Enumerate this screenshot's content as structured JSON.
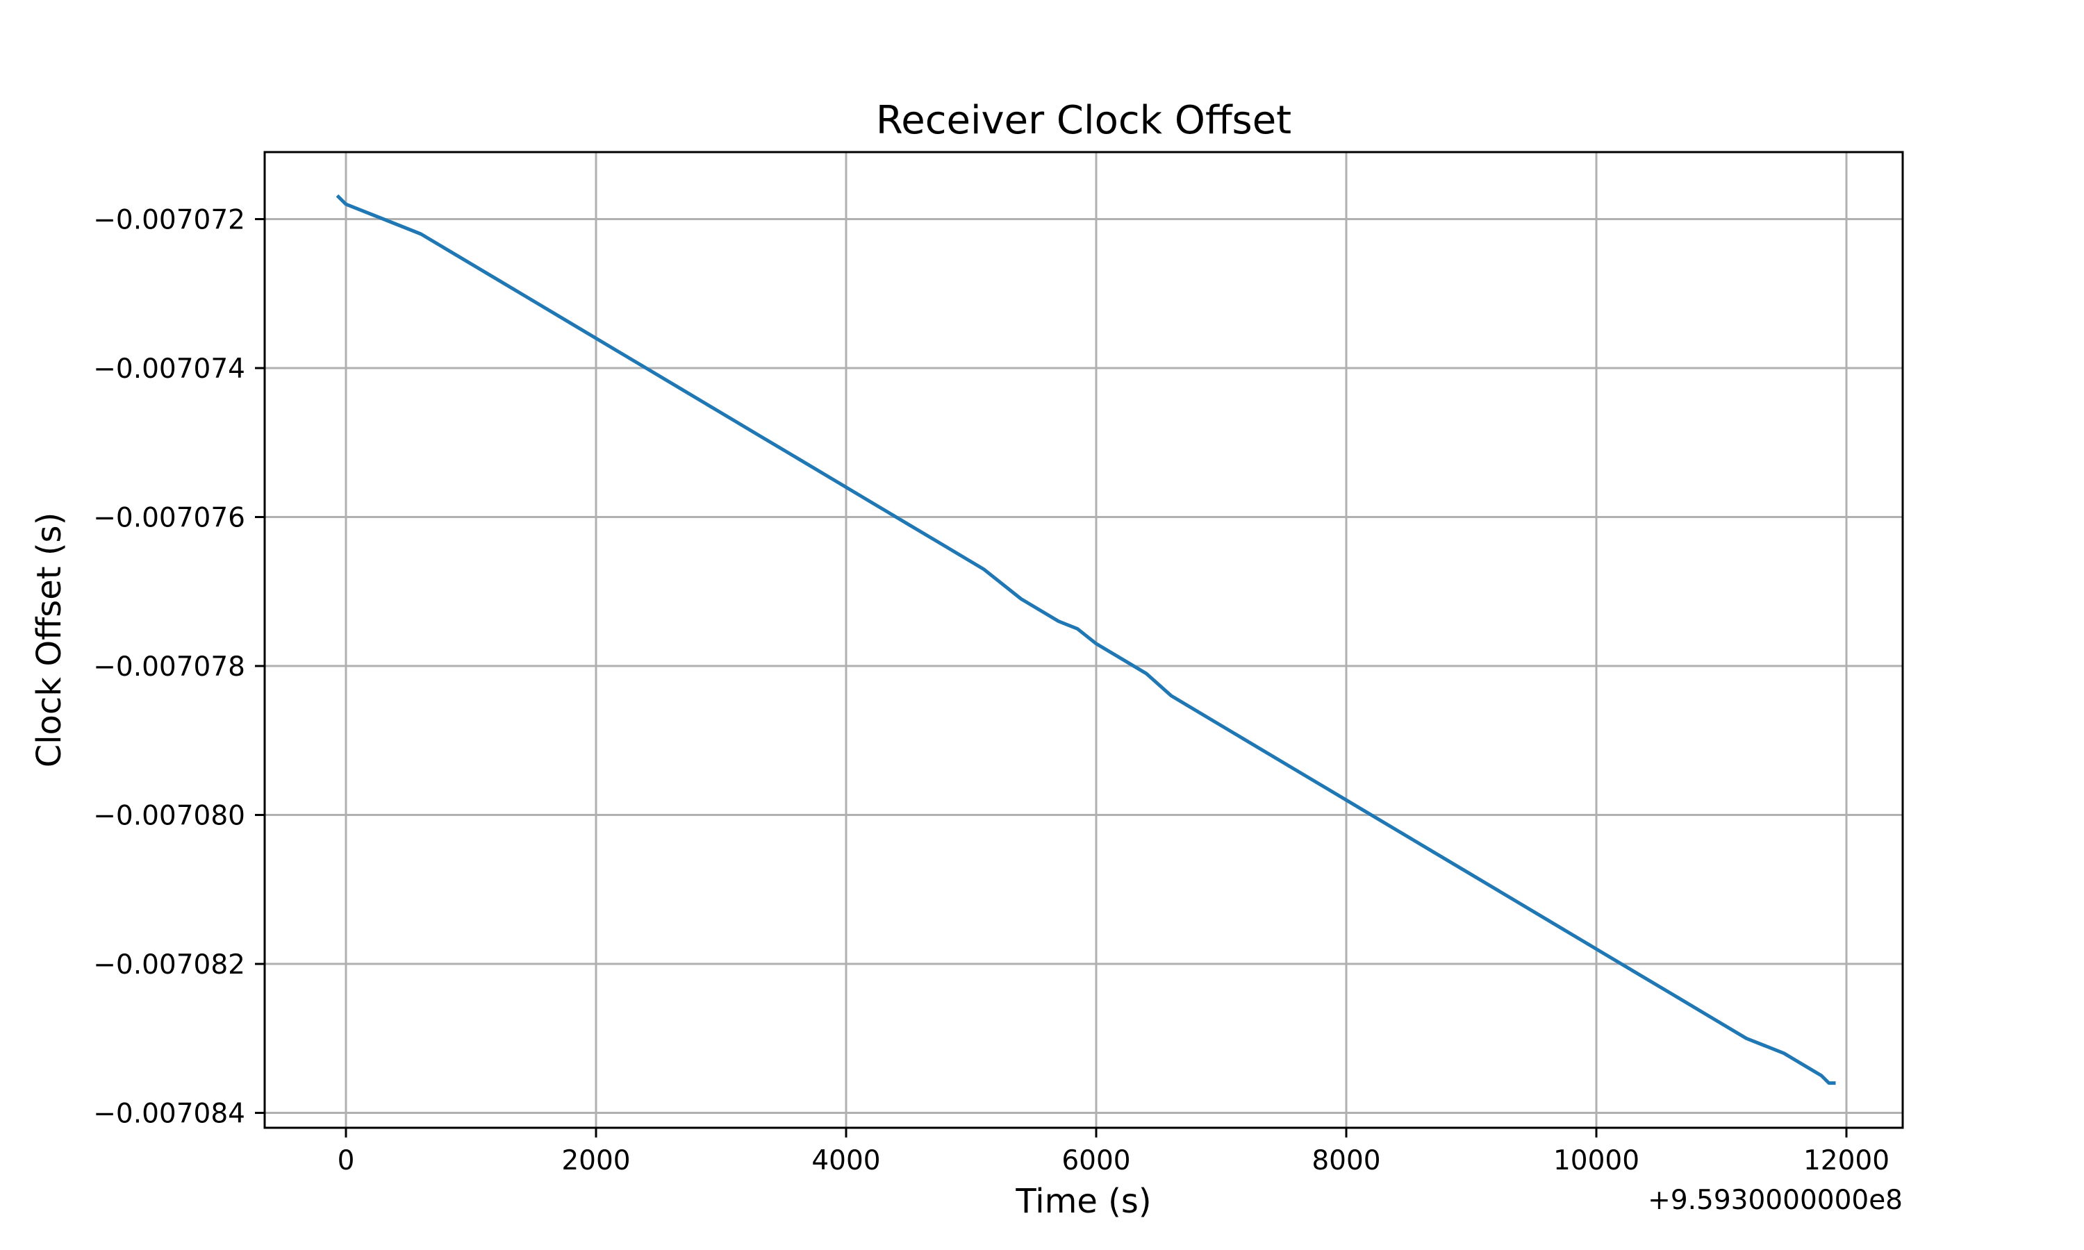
{
  "chart_data": {
    "type": "line",
    "title": "Receiver Clock Offset",
    "xlabel": "Time (s)",
    "ylabel": "Clock Offset (s)",
    "x_offset_label": "+9.5930000000e8",
    "xlim": [
      -650,
      12450
    ],
    "ylim": [
      -0.0070842,
      -0.0070711
    ],
    "xticks": [
      0,
      2000,
      4000,
      6000,
      8000,
      10000,
      12000
    ],
    "xtick_labels": [
      "0",
      "2000",
      "4000",
      "6000",
      "8000",
      "10000",
      "12000"
    ],
    "yticks": [
      -0.007072,
      -0.007074,
      -0.007076,
      -0.007078,
      -0.00708,
      -0.007082,
      -0.007084
    ],
    "ytick_labels": [
      "−0.007072",
      "−0.007074",
      "−0.007076",
      "−0.007078",
      "−0.007080",
      "−0.007082",
      "−0.007084"
    ],
    "grid": true,
    "legend": false,
    "series": [
      {
        "color": "#1f77b4",
        "x": [
          -60,
          0,
          300,
          600,
          900,
          1200,
          1500,
          1800,
          2100,
          2400,
          2700,
          3000,
          3300,
          3600,
          3900,
          4200,
          4500,
          4800,
          5100,
          5400,
          5700,
          5850,
          6000,
          6200,
          6400,
          6600,
          6900,
          7200,
          7500,
          7800,
          8100,
          8400,
          8700,
          9000,
          9300,
          9600,
          9900,
          10000,
          10300,
          10600,
          10900,
          11200,
          11500,
          11700,
          11800,
          11860,
          11900
        ],
        "y": [
          -0.0070717,
          -0.0070718,
          -0.007072,
          -0.0070722,
          -0.0070725,
          -0.0070728,
          -0.0070731,
          -0.0070734,
          -0.0070737,
          -0.007074,
          -0.0070743,
          -0.0070746,
          -0.0070749,
          -0.0070752,
          -0.0070755,
          -0.0070758,
          -0.0070761,
          -0.0070764,
          -0.0070767,
          -0.0070771,
          -0.0070774,
          -0.0070775,
          -0.0070777,
          -0.0070779,
          -0.0070781,
          -0.0070784,
          -0.0070787,
          -0.007079,
          -0.0070793,
          -0.0070796,
          -0.0070799,
          -0.0070802,
          -0.0070805,
          -0.0070808,
          -0.0070811,
          -0.0070814,
          -0.0070817,
          -0.0070818,
          -0.0070821,
          -0.0070824,
          -0.0070827,
          -0.007083,
          -0.0070832,
          -0.0070834,
          -0.0070835,
          -0.0070836,
          -0.0070836
        ]
      }
    ]
  }
}
